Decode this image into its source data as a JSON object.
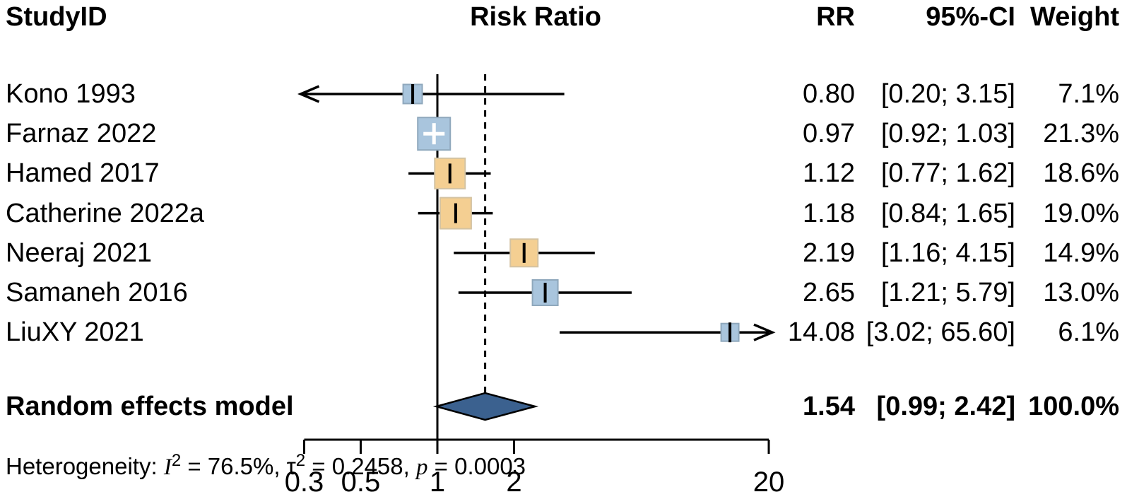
{
  "header": {
    "study_col": "StudyID",
    "plot_col": "Risk Ratio",
    "rr_col": "RR",
    "ci_col": "95%-CI",
    "weight_col": "Weight"
  },
  "chart_data": {
    "type": "forest",
    "effect_measure": "Risk Ratio",
    "x_axis": {
      "scale": "log",
      "xlim": [
        0.3,
        20
      ],
      "ticks": [
        0.3,
        0.5,
        1,
        2,
        20
      ],
      "tick_labels": [
        "0.3",
        "0.5",
        "1",
        "2",
        "20"
      ],
      "null_line": 1,
      "pooled_dashed_line": 1.54
    },
    "studies": [
      {
        "label": "Kono 1993",
        "rr": 0.8,
        "ci_low": 0.2,
        "ci_high": 3.15,
        "weight": 7.1,
        "rr_text": "0.80",
        "ci_text": "[0.20; 3.15]",
        "weight_text": "7.1%",
        "color": "blue"
      },
      {
        "label": "Farnaz 2022",
        "rr": 0.97,
        "ci_low": 0.92,
        "ci_high": 1.03,
        "weight": 21.3,
        "rr_text": "0.97",
        "ci_text": "[0.92; 1.03]",
        "weight_text": "21.3%",
        "color": "blue"
      },
      {
        "label": "Hamed 2017",
        "rr": 1.12,
        "ci_low": 0.77,
        "ci_high": 1.62,
        "weight": 18.6,
        "rr_text": "1.12",
        "ci_text": "[0.77; 1.62]",
        "weight_text": "18.6%",
        "color": "orange"
      },
      {
        "label": "Catherine 2022a",
        "rr": 1.18,
        "ci_low": 0.84,
        "ci_high": 1.65,
        "weight": 19.0,
        "rr_text": "1.18",
        "ci_text": "[0.84; 1.65]",
        "weight_text": "19.0%",
        "color": "orange"
      },
      {
        "label": "Neeraj 2021",
        "rr": 2.19,
        "ci_low": 1.16,
        "ci_high": 4.15,
        "weight": 14.9,
        "rr_text": "2.19",
        "ci_text": "[1.16; 4.15]",
        "weight_text": "14.9%",
        "color": "orange"
      },
      {
        "label": "Samaneh 2016",
        "rr": 2.65,
        "ci_low": 1.21,
        "ci_high": 5.79,
        "weight": 13.0,
        "rr_text": "2.65",
        "ci_text": "[1.21; 5.79]",
        "weight_text": "13.0%",
        "color": "blue"
      },
      {
        "label": "LiuXY 2021",
        "rr": 14.08,
        "ci_low": 3.02,
        "ci_high": 65.6,
        "weight": 6.1,
        "rr_text": "14.08",
        "ci_text": "[3.02; 65.60]",
        "weight_text": "6.1%",
        "color": "blue"
      }
    ],
    "summary": {
      "label": "Random effects model",
      "rr": 1.54,
      "ci_low": 0.99,
      "ci_high": 2.42,
      "weight": 100.0,
      "rr_text": "1.54",
      "ci_text": "[0.99; 2.42]",
      "weight_text": "100.0%"
    },
    "heterogeneity": {
      "prefix": "Heterogeneity: ",
      "i2_symbol": "I",
      "i2_sup": "2",
      "i2_value": " = 76.5%, ",
      "tau_symbol": "τ",
      "tau_sup": "2",
      "tau_value": " = 0.2458, ",
      "p_symbol": "p",
      "p_value": " = 0.0003"
    }
  },
  "colors": {
    "blue_fill": "#a9c5dd",
    "blue_border": "#8fa8bc",
    "orange_fill": "#f4cf92",
    "orange_border": "#d4c3a2",
    "diamond_fill": "#3b618f",
    "diamond_border": "#000000",
    "line": "#000000"
  }
}
